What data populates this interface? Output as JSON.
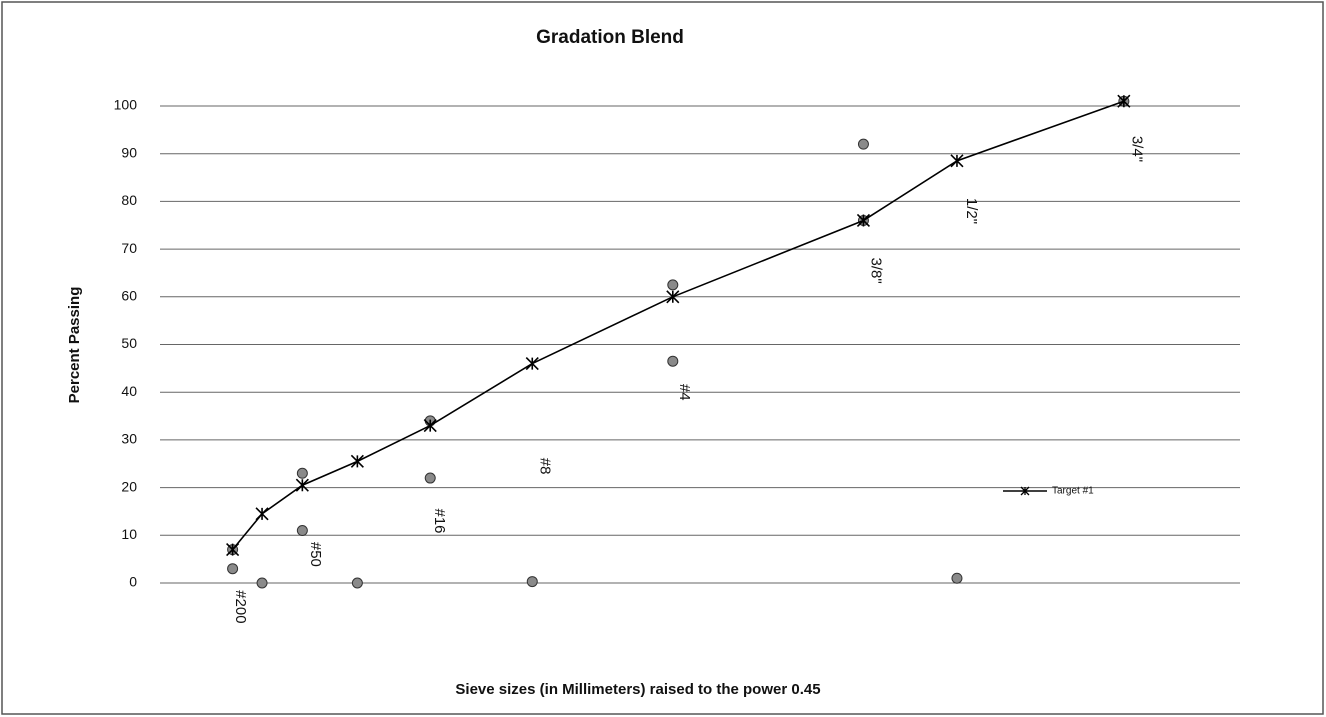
{
  "chart_data": {
    "type": "line",
    "title": "Gradation Blend",
    "y_label": "Percent Passing",
    "x_label": "Sieve sizes (in Millimeters) raised to the power 0.45",
    "xlim": [
      0,
      4.2
    ],
    "ylim": [
      0,
      100
    ],
    "yticks": [
      0,
      10,
      20,
      30,
      40,
      50,
      60,
      70,
      80,
      90,
      100
    ],
    "grid": true,
    "legend": "right",
    "series": [
      {
        "name": "Target #1",
        "color": "#000000",
        "marker": "x",
        "x": [
          0.312,
          0.426,
          0.582,
          0.795,
          1.077,
          1.472,
          2.016,
          2.754,
          3.116,
          3.762
        ],
        "values": [
          7,
          14.5,
          20.5,
          25.5,
          33,
          46,
          60,
          76,
          88.5,
          101
        ]
      }
    ],
    "points": {
      "color": "#8a8a8a",
      "x": [
        0.312,
        0.312,
        0.426,
        0.582,
        0.582,
        0.795,
        1.077,
        1.077,
        1.472,
        2.016,
        2.016,
        2.754,
        2.754,
        3.116,
        3.762
      ],
      "values": [
        3,
        7,
        0,
        23,
        11,
        0,
        34,
        22,
        0.3,
        62.5,
        46.5,
        92,
        76,
        1,
        101
      ]
    },
    "annotations": [
      {
        "text": "#200",
        "x": 0.34,
        "y": -5
      },
      {
        "text": "#50",
        "x": 0.63,
        "y": 6
      },
      {
        "text": "#16",
        "x": 1.11,
        "y": 13
      },
      {
        "text": "#8",
        "x": 1.52,
        "y": 24.5
      },
      {
        "text": "#4",
        "x": 2.06,
        "y": 40
      },
      {
        "text": "3/8\"",
        "x": 2.8,
        "y": 65.5
      },
      {
        "text": "1/2\"",
        "x": 3.17,
        "y": 78
      },
      {
        "text": "3/4\"",
        "x": 3.81,
        "y": 91
      }
    ]
  }
}
